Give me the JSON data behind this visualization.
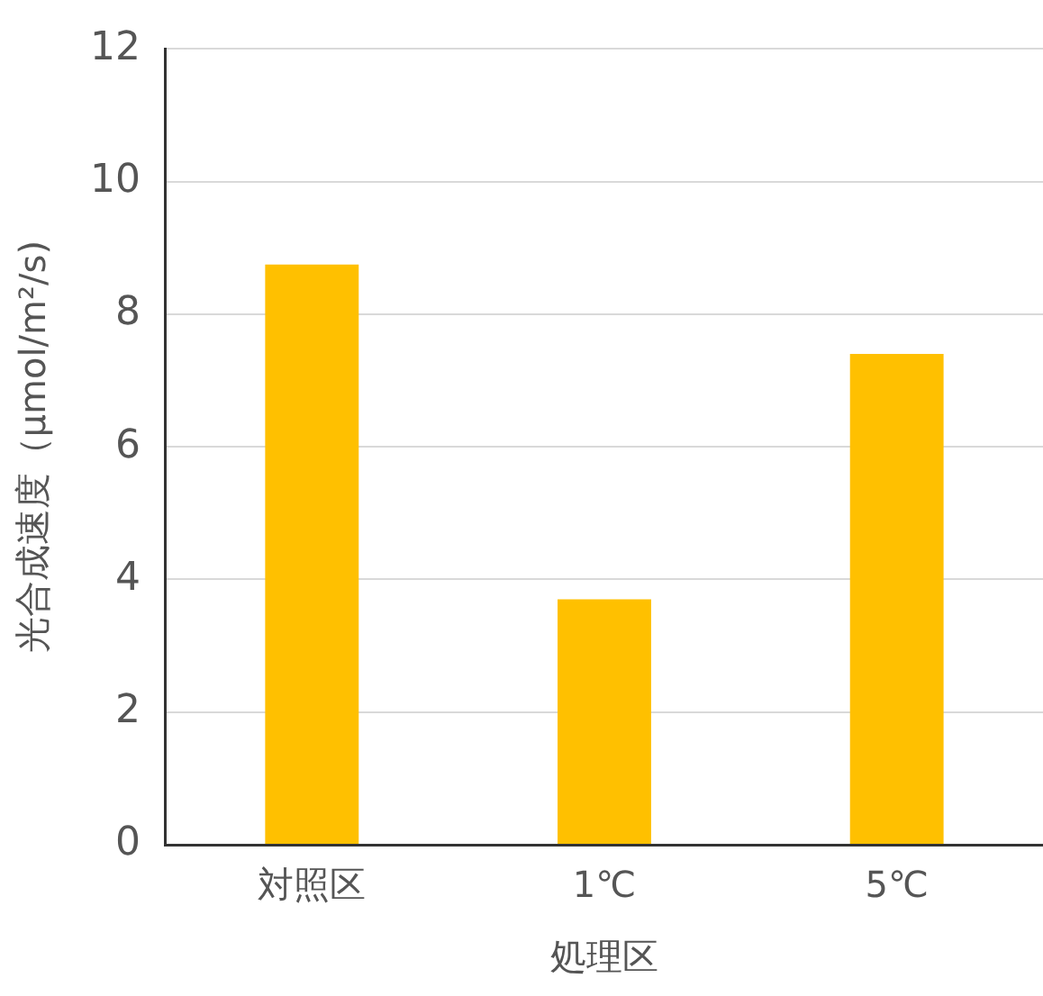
{
  "chart_data": {
    "type": "bar",
    "xlabel": "処理区",
    "ylabel": "光合成速度（μmol/m²/s)",
    "categories": [
      "対照区",
      "1℃",
      "5℃"
    ],
    "values": [
      8.75,
      3.7,
      7.4
    ],
    "color": "#ffc000",
    "ylim": [
      0,
      12
    ],
    "yticks": [
      0,
      2,
      4,
      6,
      8,
      10,
      12
    ],
    "grid": "y"
  }
}
